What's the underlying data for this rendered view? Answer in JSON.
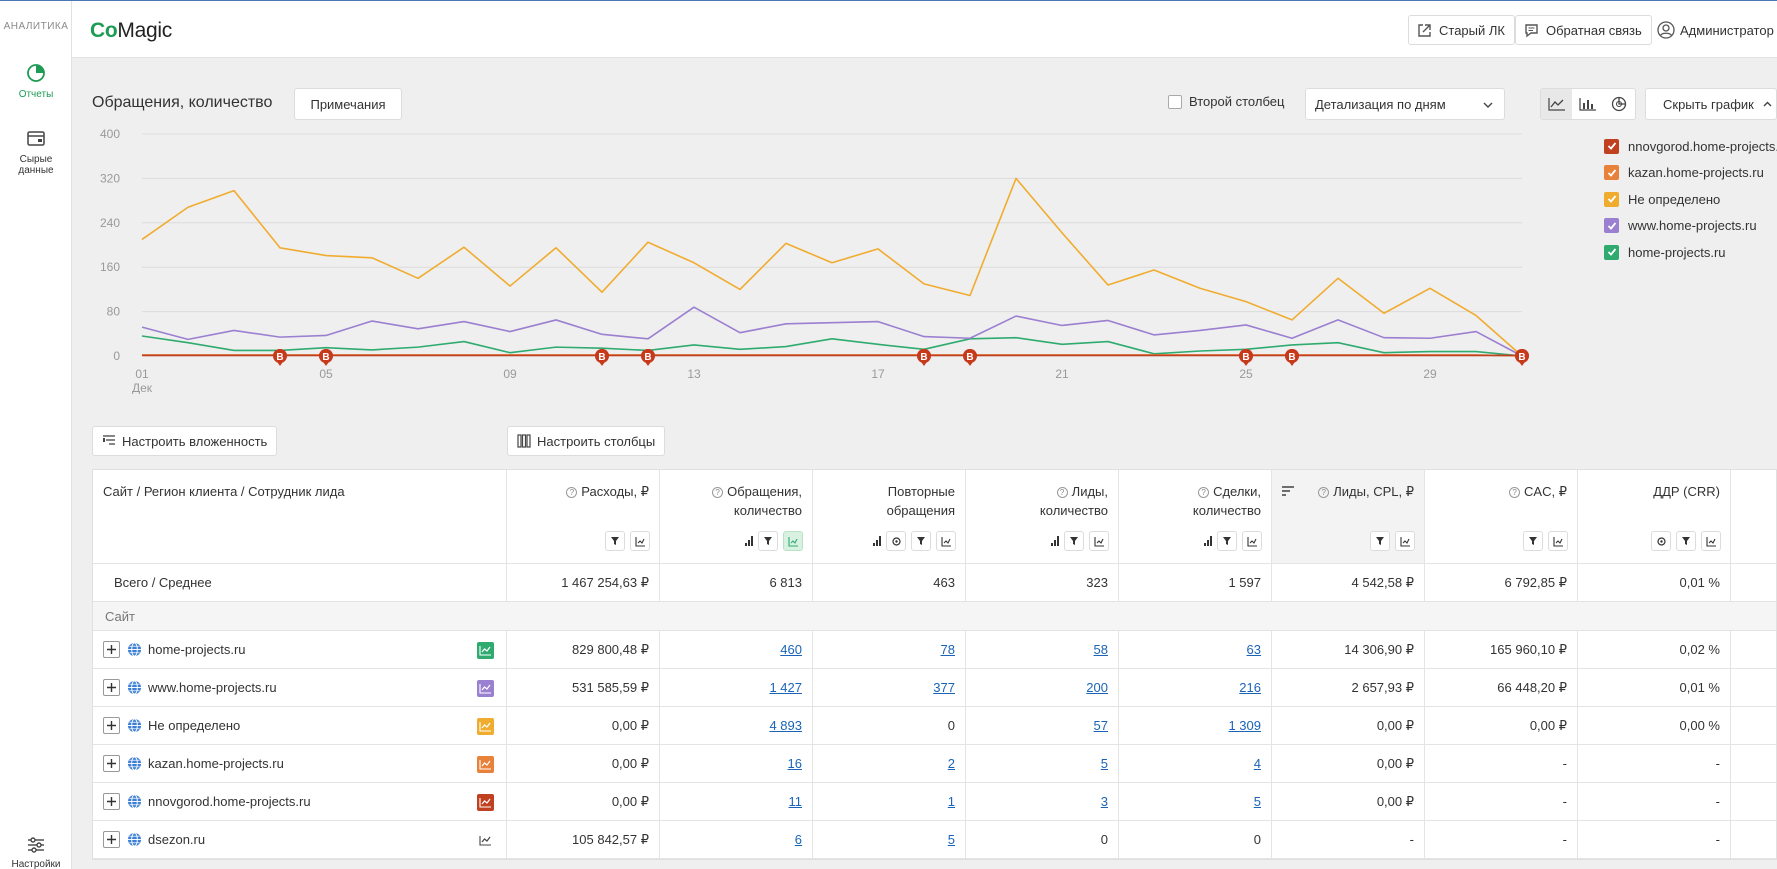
{
  "rail": {
    "title": "АНАЛИТИКА",
    "items": [
      {
        "label": "Отчеты",
        "active": true
      },
      {
        "label_lines": [
          "Сырые",
          "данные"
        ]
      },
      {
        "label": "Настройки"
      }
    ]
  },
  "header": {
    "logo_co": "Co",
    "logo_magic": "Magic",
    "old_lk": "Старый ЛК",
    "feedback": "Обратная связь",
    "user": "Администратор"
  },
  "chart_panel": {
    "title": "Обращения, количество",
    "notes_button": "Примечания",
    "second_column_label": "Второй столбец",
    "detail_select": "Детализация по дням",
    "hide_chart": "Скрыть график"
  },
  "chart_data": {
    "type": "line",
    "ylim": [
      0,
      400
    ],
    "yticks": [
      0,
      80,
      160,
      240,
      320,
      400
    ],
    "xtick_labels": [
      "01",
      "05",
      "09",
      "13",
      "17",
      "21",
      "25",
      "29"
    ],
    "xtick_days": [
      1,
      5,
      9,
      13,
      17,
      21,
      25,
      29
    ],
    "x_sublabel": "Дек",
    "days": [
      1,
      2,
      3,
      4,
      5,
      6,
      7,
      8,
      9,
      10,
      11,
      12,
      13,
      14,
      15,
      16,
      17,
      18,
      19,
      20,
      21,
      22,
      23,
      24,
      25,
      26,
      27,
      28,
      29,
      30,
      31
    ],
    "series": [
      {
        "name": "nnovgorod.home-projects.ru",
        "color": "#c0411f",
        "values": [
          1,
          1,
          1,
          1,
          1,
          1,
          1,
          1,
          1,
          1,
          1,
          1,
          1,
          1,
          1,
          1,
          1,
          1,
          1,
          1,
          1,
          1,
          1,
          1,
          1,
          1,
          1,
          1,
          1,
          1,
          1
        ]
      },
      {
        "name": "kazan.home-projects.ru",
        "color": "#e8813a",
        "values": [
          2,
          2,
          2,
          2,
          2,
          2,
          2,
          2,
          2,
          2,
          2,
          2,
          2,
          2,
          2,
          2,
          2,
          2,
          2,
          2,
          2,
          2,
          2,
          2,
          2,
          2,
          2,
          2,
          2,
          2,
          0
        ]
      },
      {
        "name": "Не определено",
        "color": "#f0ac2e",
        "values": [
          210,
          268,
          298,
          195,
          181,
          177,
          140,
          196,
          126,
          195,
          115,
          205,
          168,
          120,
          203,
          168,
          193,
          130,
          109,
          320,
          222,
          128,
          155,
          122,
          98,
          65,
          140,
          77,
          122,
          73,
          0
        ]
      },
      {
        "name": "www.home-projects.ru",
        "color": "#9b7fd0",
        "values": [
          52,
          30,
          46,
          34,
          37,
          63,
          49,
          62,
          44,
          65,
          39,
          31,
          88,
          42,
          58,
          60,
          62,
          35,
          32,
          72,
          55,
          64,
          38,
          46,
          56,
          32,
          65,
          33,
          32,
          44,
          0
        ]
      },
      {
        "name": "home-projects.ru",
        "color": "#2fab6f",
        "values": [
          36,
          24,
          10,
          10,
          15,
          11,
          16,
          26,
          6,
          16,
          14,
          10,
          20,
          12,
          17,
          31,
          21,
          12,
          31,
          33,
          21,
          26,
          4,
          9,
          12,
          20,
          24,
          6,
          8,
          8,
          0
        ]
      }
    ],
    "markers": {
      "label": "B",
      "days": [
        4,
        5,
        11,
        12,
        18,
        19,
        25,
        26,
        31
      ]
    }
  },
  "table_controls": {
    "nesting": "Настроить вложенность",
    "columns": "Настроить столбцы"
  },
  "table": {
    "columns": [
      {
        "label": "Сайт / Регион клиента / Сотрудник лида"
      },
      {
        "line1": "Расходы, ₽",
        "line2": "",
        "help": true
      },
      {
        "line1": "Обращения,",
        "line2": "количество",
        "help": true
      },
      {
        "line1": "Повторные",
        "line2": "обращения",
        "help": false
      },
      {
        "line1": "Лиды,",
        "line2": "количество",
        "help": true
      },
      {
        "line1": "Сделки,",
        "line2": "количество",
        "help": true
      },
      {
        "line1": "Лиды, CPL, ₽",
        "line2": "",
        "help": true
      },
      {
        "line1": "CAC, ₽",
        "line2": "",
        "help": true
      },
      {
        "line1": "ДДР (CRR)",
        "line2": "",
        "help": false
      }
    ],
    "totals": {
      "label": "Всего / Среднее",
      "values": [
        "1 467 254,63 ₽",
        "6 813",
        "463",
        "323",
        "1 597",
        "4 542,58 ₽",
        "6 792,85 ₽",
        "0,01 %"
      ]
    },
    "group_label": "Сайт",
    "rows": [
      {
        "name": "home-projects.ru",
        "color": "#2fab6f",
        "values": [
          "829 800,48 ₽",
          "460",
          "78",
          "58",
          "63",
          "14 306,90 ₽",
          "165 960,10 ₽",
          "0,02 %"
        ]
      },
      {
        "name": "www.home-projects.ru",
        "color": "#9b7fd0",
        "values": [
          "531 585,59 ₽",
          "1 427",
          "377",
          "200",
          "216",
          "2 657,93 ₽",
          "66 448,20 ₽",
          "0,01 %"
        ]
      },
      {
        "name": "Не определено",
        "color": "#f0ac2e",
        "values": [
          "0,00 ₽",
          "4 893",
          "0",
          "57",
          "1 309",
          "0,00 ₽",
          "0,00 ₽",
          "0,00 %"
        ]
      },
      {
        "name": "kazan.home-projects.ru",
        "color": "#e8813a",
        "values": [
          "0,00 ₽",
          "16",
          "2",
          "5",
          "4",
          "0,00 ₽",
          "-",
          "-"
        ]
      },
      {
        "name": "nnovgorod.home-projects.ru",
        "color": "#c0411f",
        "values": [
          "0,00 ₽",
          "11",
          "1",
          "3",
          "5",
          "0,00 ₽",
          "-",
          "-"
        ]
      },
      {
        "name": "dsezon.ru",
        "color": "",
        "values": [
          "105 842,57 ₽",
          "6",
          "5",
          "0",
          "0",
          "-",
          "-",
          "-"
        ]
      }
    ]
  }
}
